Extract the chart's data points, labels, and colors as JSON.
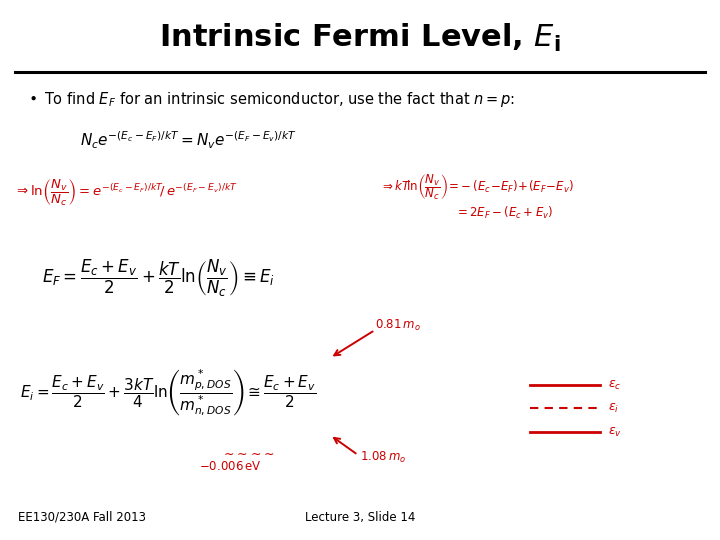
{
  "bg_color": "#ffffff",
  "text_color": "#000000",
  "red_color": "#cc0000",
  "footer_left": "EE130/230A Fall 2013",
  "footer_right": "Lecture 3, Slide 14",
  "title_fontsize": 22,
  "bullet_fontsize": 10.5,
  "eq1_fontsize": 11,
  "eq2_fontsize": 9.5,
  "eq3_fontsize": 12,
  "eq4_fontsize": 11,
  "annot_fontsize": 8.5,
  "legend_fontsize": 9,
  "footer_fontsize": 8.5
}
